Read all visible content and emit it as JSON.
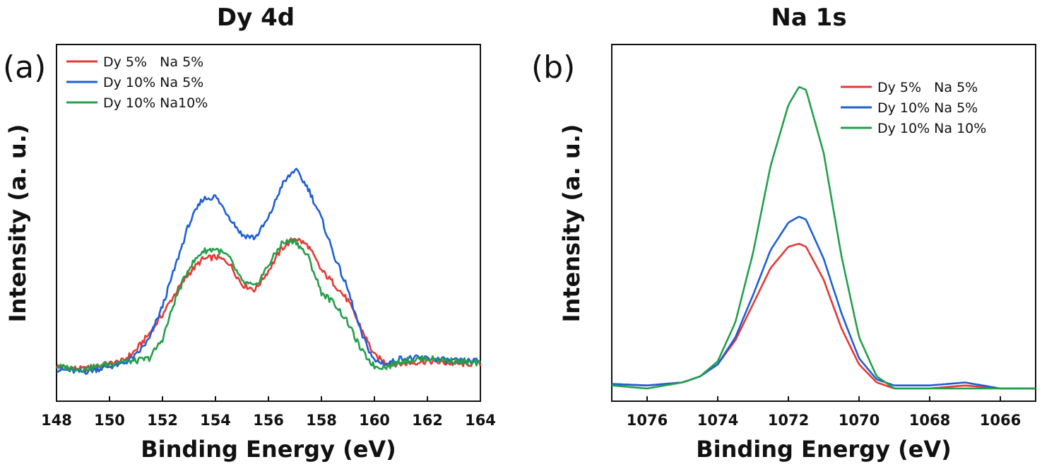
{
  "chart_data": [
    {
      "panel_label": "(a)",
      "type": "line",
      "title": "Dy 4d",
      "xlabel": "Binding Energy (eV)",
      "ylabel": "Intensity (a. u.)",
      "xlim": [
        148,
        164
      ],
      "ylim": [
        0,
        1.1
      ],
      "x_reversed": false,
      "y_tick_labels": false,
      "xticks": [
        "148",
        "150",
        "152",
        "154",
        "156",
        "158",
        "160",
        "162",
        "164"
      ],
      "legend_position": "top-left",
      "x": [
        148,
        149,
        150,
        150.5,
        151,
        151.5,
        152,
        152.5,
        153,
        153.5,
        154,
        154.5,
        155,
        155.5,
        156,
        156.5,
        157,
        157.5,
        158,
        158.5,
        159,
        159.5,
        160,
        160.5,
        161,
        162,
        163,
        164
      ],
      "series": [
        {
          "name": "Dy 5%   Na 5%",
          "color": "#e53935",
          "values": [
            0.08,
            0.07,
            0.09,
            0.1,
            0.14,
            0.2,
            0.27,
            0.35,
            0.42,
            0.47,
            0.48,
            0.46,
            0.38,
            0.36,
            0.43,
            0.51,
            0.55,
            0.52,
            0.43,
            0.38,
            0.32,
            0.22,
            0.12,
            0.09,
            0.09,
            0.1,
            0.09,
            0.09
          ]
        },
        {
          "name": "Dy 10% Na 5%",
          "color": "#1e5fd6",
          "values": [
            0.07,
            0.06,
            0.08,
            0.09,
            0.12,
            0.18,
            0.3,
            0.45,
            0.6,
            0.69,
            0.7,
            0.63,
            0.56,
            0.55,
            0.62,
            0.74,
            0.8,
            0.73,
            0.62,
            0.48,
            0.36,
            0.2,
            0.1,
            0.09,
            0.11,
            0.11,
            0.1,
            0.1
          ]
        },
        {
          "name": "Dy 10% Na10%",
          "color": "#22a04a",
          "values": [
            0.08,
            0.07,
            0.09,
            0.1,
            0.1,
            0.11,
            0.18,
            0.33,
            0.44,
            0.5,
            0.51,
            0.48,
            0.39,
            0.37,
            0.45,
            0.53,
            0.54,
            0.48,
            0.35,
            0.31,
            0.24,
            0.14,
            0.08,
            0.08,
            0.1,
            0.11,
            0.1,
            0.09
          ]
        }
      ]
    },
    {
      "panel_label": "(b)",
      "type": "line",
      "title": "Na 1s",
      "xlabel": "Binding Energy (eV)",
      "ylabel": "Intensity (a. u.)",
      "xlim": [
        1077,
        1065
      ],
      "ylim": [
        0,
        1.0
      ],
      "x_reversed": true,
      "y_tick_labels": false,
      "xticks": [
        "1076",
        "1074",
        "1072",
        "1070",
        "1068",
        "1066"
      ],
      "legend_position": "top-right",
      "x": [
        1077,
        1076,
        1075,
        1074.5,
        1074,
        1073.5,
        1073,
        1072.5,
        1072,
        1071.7,
        1071.5,
        1071,
        1070.5,
        1070,
        1069.5,
        1069,
        1068,
        1067,
        1066,
        1065
      ],
      "series": [
        {
          "name": "Dy 5%   Na 5%",
          "color": "#e53935",
          "values": [
            0.015,
            0.01,
            0.02,
            0.04,
            0.08,
            0.16,
            0.28,
            0.4,
            0.47,
            0.48,
            0.47,
            0.36,
            0.2,
            0.08,
            0.02,
            0.0,
            0.0,
            0.01,
            0.0,
            0.0
          ]
        },
        {
          "name": "Dy 10% Na 5%",
          "color": "#1e5fd6",
          "values": [
            0.015,
            0.01,
            0.02,
            0.04,
            0.08,
            0.17,
            0.31,
            0.46,
            0.55,
            0.57,
            0.56,
            0.43,
            0.25,
            0.1,
            0.03,
            0.01,
            0.01,
            0.02,
            0.0,
            0.0
          ]
        },
        {
          "name": "Dy 10% Na 10%",
          "color": "#22a04a",
          "values": [
            0.01,
            0.0,
            0.02,
            0.04,
            0.09,
            0.22,
            0.45,
            0.74,
            0.94,
            1.0,
            0.99,
            0.78,
            0.44,
            0.17,
            0.04,
            0.0,
            0.0,
            0.0,
            0.0,
            0.0
          ]
        }
      ]
    }
  ]
}
